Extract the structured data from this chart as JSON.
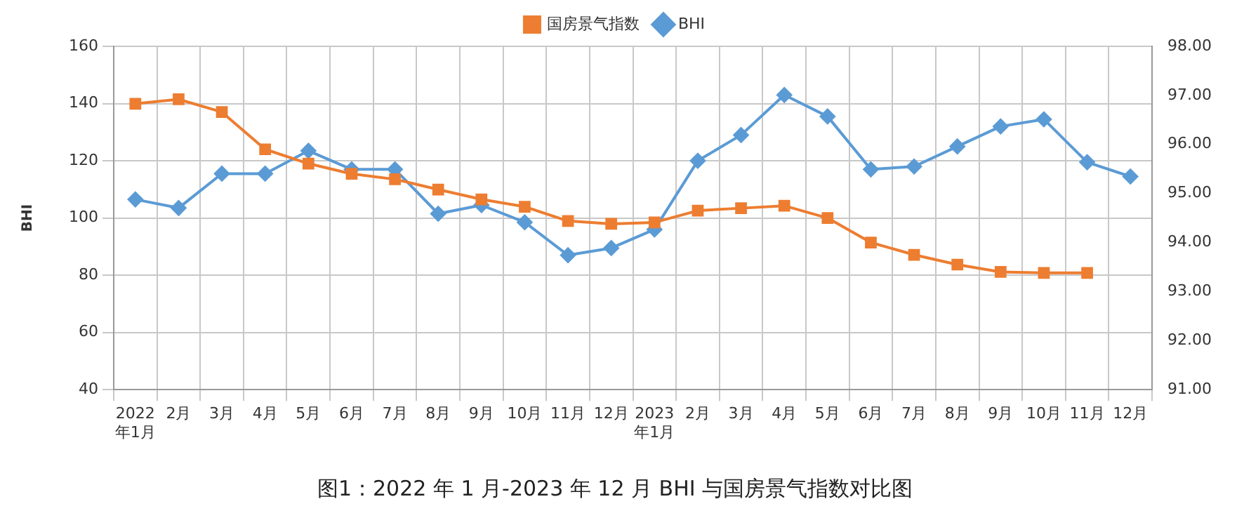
{
  "chart_data": {
    "type": "line",
    "title": "图1：2022 年 1 月-2023 年 12 月 BHI 与国房景气指数对比图",
    "ylabel": "BHI",
    "categories": [
      "2022年1月",
      "2月",
      "3月",
      "4月",
      "5月",
      "6月",
      "7月",
      "8月",
      "9月",
      "10月",
      "11月",
      "12月",
      "2023年1月",
      "2月",
      "3月",
      "4月",
      "5月",
      "6月",
      "7月",
      "8月",
      "9月",
      "10月",
      "11月",
      "12月"
    ],
    "series": [
      {
        "name": "BHI",
        "color": "#5b9bd5",
        "marker": "diamond",
        "values": [
          106.5,
          103.5,
          115.5,
          115.5,
          123.5,
          117,
          117,
          101.5,
          104.5,
          98.5,
          87,
          89.5,
          96,
          120,
          129,
          143,
          135.5,
          117,
          118,
          125,
          132,
          134.5,
          119.5,
          114.5
        ]
      },
      {
        "name": "国房景气指数",
        "color": "#ed7d31",
        "marker": "square",
        "axis": "y2",
        "values": [
          96.83,
          96.92,
          96.66,
          95.9,
          95.61,
          95.4,
          95.29,
          95.08,
          94.88,
          94.73,
          94.44,
          94.38,
          94.41,
          94.65,
          94.7,
          94.75,
          94.5,
          94.0,
          93.75,
          93.55,
          93.4,
          93.38,
          93.38,
          null
        ]
      }
    ],
    "ylim": [
      40,
      160
    ],
    "yticks": [
      40,
      60,
      80,
      100,
      120,
      140,
      160
    ],
    "y2lim": [
      91,
      98
    ],
    "y2ticks": [
      {
        "value": 91,
        "label": "91.00"
      },
      {
        "value": 92,
        "label": "92.00"
      },
      {
        "value": 93,
        "label": "93.00"
      },
      {
        "value": 94,
        "label": "94.00"
      },
      {
        "value": 95,
        "label": "95.00"
      },
      {
        "value": 96,
        "label": "96.00"
      },
      {
        "value": 97,
        "label": "97.00"
      },
      {
        "value": 98,
        "label": "98.00"
      }
    ],
    "grid": true,
    "legend": "top",
    "line_style": "solid"
  }
}
